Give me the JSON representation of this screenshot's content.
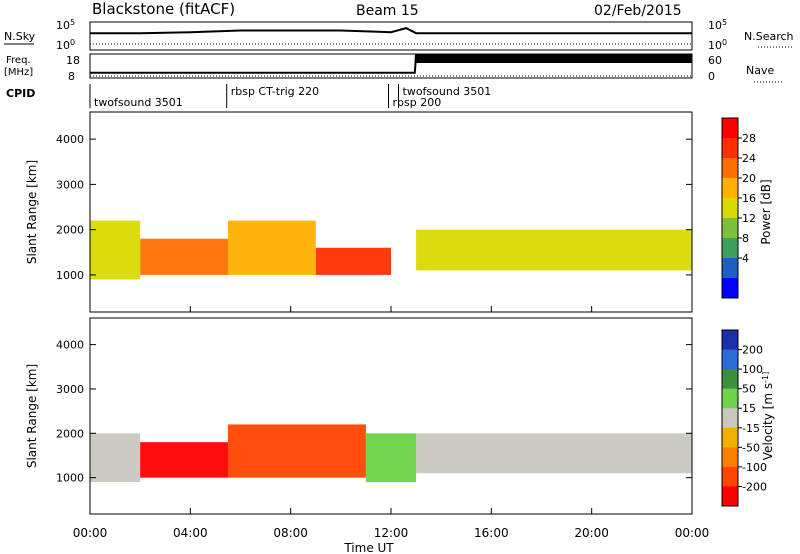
{
  "header": {
    "station": "Blackstone (fitACF)",
    "beam": "Beam 15",
    "date": "02/Feb/2015"
  },
  "panels": {
    "nsky": {
      "label": "N.Sky",
      "left_ticks": [
        "10^5",
        "10^0"
      ],
      "right_ticks": [
        "10^5",
        "10^0"
      ],
      "right_label": "N.Search"
    },
    "freq": {
      "label": "Freq.",
      "unit": "[MHz]",
      "left_ticks": [
        "18",
        "8"
      ],
      "right_ticks": [
        "60",
        "0"
      ],
      "right_label": "Nave"
    },
    "cpid": {
      "label": "CPID",
      "segments": [
        {
          "name": "twofsound 3501",
          "start_hour": 0.0,
          "end_hour": 5.45
        },
        {
          "name": "rbsp CT-trig 220",
          "start_hour": 5.45,
          "end_hour": 11.9
        },
        {
          "name": "rbsp 200",
          "start_hour": 11.9,
          "end_hour": 12.3
        },
        {
          "name": "twofsound 3501",
          "start_hour": 12.3,
          "end_hour": 24.0
        }
      ]
    }
  },
  "axes": {
    "ylabel": "Slant Range [km]",
    "xlabel": "Time UT",
    "xticks": [
      "00:00",
      "04:00",
      "08:00",
      "12:00",
      "16:00",
      "20:00",
      "00:00"
    ],
    "yticks": [
      "1000",
      "2000",
      "3000",
      "4000"
    ]
  },
  "colorbars": {
    "power": {
      "label": "Power [dB]",
      "ticks": [
        "28",
        "24",
        "20",
        "16",
        "12",
        "8",
        "4"
      ],
      "colors": [
        "#0000ff",
        "#1f5fbf",
        "#3f9f5f",
        "#7fbf3f",
        "#d9d900",
        "#ffb000",
        "#ff7000",
        "#ff3000",
        "#ff0000"
      ]
    },
    "velocity": {
      "label": "Velocity [m s^-1]",
      "ticks": [
        "200",
        "100",
        "50",
        "15",
        "-15",
        "-50",
        "-100",
        "-200"
      ],
      "colors": [
        "#1c2fa8",
        "#2a6bd8",
        "#3e8e3e",
        "#6cd44a",
        "#c8c8c0",
        "#f0b000",
        "#ff8000",
        "#ff4500",
        "#ff0000"
      ]
    }
  },
  "chart_data": [
    {
      "type": "line",
      "title": "Blackstone (fitACF)",
      "x_unit": "hours UT",
      "series": [
        {
          "values_hours": [
            0,
            2,
            4,
            6,
            8,
            10,
            12,
            12.6,
            13,
            16,
            20,
            24
          ],
          "values": [
            1000.0,
            1000.0,
            1500.0,
            3000.0,
            3000.0,
            3000.0,
            1500.0,
            8000.0,
            1000.0,
            1000.0,
            1000.0,
            1000.0
          ]
        }
      ]
    },
    {
      "type": "line",
      "title": "Freq. [MHz]",
      "series": [
        {
          "values_hours": [
            0,
            12.95,
            13,
            24
          ],
          "values": [
            10.2,
            10.2,
            17.5,
            17.5
          ]
        }
      ]
    },
    {
      "type": "heatmap",
      "title": "Power [dB]",
      "xlabel": "Time UT",
      "ylabel": "Slant Range [km]",
      "xlim_hours": [
        0,
        24
      ],
      "ylim": [
        180,
        4600
      ],
      "zlim": [
        0,
        30
      ],
      "bands": [
        {
          "start_hour": 0.0,
          "end_hour": 2.0,
          "range_low": 900,
          "range_high": 2200,
          "power": 14
        },
        {
          "start_hour": 2.0,
          "end_hour": 5.5,
          "range_low": 1000,
          "range_high": 1800,
          "power": 22
        },
        {
          "start_hour": 5.5,
          "end_hour": 9.0,
          "range_low": 1000,
          "range_high": 2200,
          "power": 18
        },
        {
          "start_hour": 9.0,
          "end_hour": 12.0,
          "range_low": 1000,
          "range_high": 1600,
          "power": 26
        },
        {
          "start_hour": 13.0,
          "end_hour": 24.0,
          "range_low": 1100,
          "range_high": 2000,
          "power": 16
        }
      ]
    },
    {
      "type": "heatmap",
      "title": "Velocity [m s^-1]",
      "xlabel": "Time UT",
      "ylabel": "Slant Range [km]",
      "xlim_hours": [
        0,
        24
      ],
      "ylim": [
        180,
        4600
      ],
      "zlim": [
        -250,
        250
      ],
      "bands": [
        {
          "start_hour": 0.0,
          "end_hour": 2.0,
          "range_low": 900,
          "range_high": 2000,
          "velocity": 0
        },
        {
          "start_hour": 2.0,
          "end_hour": 5.5,
          "range_low": 1000,
          "range_high": 1800,
          "velocity": -200
        },
        {
          "start_hour": 5.5,
          "end_hour": 11.0,
          "range_low": 1000,
          "range_high": 2200,
          "velocity": -150
        },
        {
          "start_hour": 11.0,
          "end_hour": 13.0,
          "range_low": 900,
          "range_high": 2000,
          "velocity": 40
        },
        {
          "start_hour": 13.0,
          "end_hour": 24.0,
          "range_low": 1100,
          "range_high": 2000,
          "velocity": 0
        }
      ]
    }
  ]
}
